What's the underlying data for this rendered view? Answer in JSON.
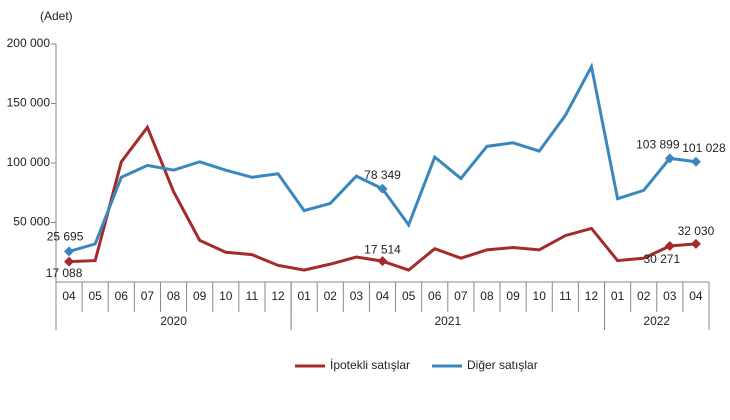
{
  "chart_data": {
    "type": "line",
    "y_label": "(Adet)",
    "categories": [
      "04",
      "05",
      "06",
      "07",
      "08",
      "09",
      "10",
      "11",
      "12",
      "01",
      "02",
      "03",
      "04",
      "05",
      "06",
      "07",
      "08",
      "09",
      "10",
      "11",
      "12",
      "01",
      "02",
      "03",
      "04"
    ],
    "groups": [
      {
        "label": "2020",
        "span": 9
      },
      {
        "label": "2021",
        "span": 12
      },
      {
        "label": "2022",
        "span": 4
      }
    ],
    "ylim": [
      0,
      200000
    ],
    "yticks": [
      {
        "value": 50000,
        "label": "50 000"
      },
      {
        "value": 100000,
        "label": "100 000"
      },
      {
        "value": 150000,
        "label": "150 000"
      },
      {
        "value": 200000,
        "label": "200 000"
      }
    ],
    "grid": false,
    "legend": "bottom",
    "series": [
      {
        "name": "İpotekli satışlar",
        "color": "#a52a2a",
        "values": [
          17088,
          18000,
          101000,
          130000,
          76000,
          35000,
          25000,
          23000,
          14000,
          10000,
          15000,
          21000,
          17514,
          10000,
          28000,
          20000,
          27000,
          29000,
          27000,
          39000,
          45000,
          18000,
          20000,
          30271,
          32030
        ],
        "value_labels": [
          "17 088",
          null,
          null,
          null,
          null,
          null,
          null,
          null,
          null,
          null,
          null,
          null,
          "17 514",
          null,
          null,
          null,
          null,
          null,
          null,
          null,
          null,
          null,
          null,
          "30 271",
          "32 030"
        ]
      },
      {
        "name": "Diğer satışlar",
        "color": "#3a87bd",
        "values": [
          25695,
          32000,
          88000,
          98000,
          94000,
          101000,
          94000,
          88000,
          91000,
          60000,
          66000,
          89000,
          78349,
          48000,
          105000,
          87000,
          114000,
          117000,
          110000,
          140000,
          181000,
          70000,
          77000,
          103899,
          101028
        ],
        "value_labels": [
          "25 695",
          null,
          null,
          null,
          null,
          null,
          null,
          null,
          null,
          null,
          null,
          null,
          "78 349",
          null,
          null,
          null,
          null,
          null,
          null,
          null,
          null,
          null,
          null,
          "103 899",
          "101 028"
        ]
      }
    ]
  }
}
